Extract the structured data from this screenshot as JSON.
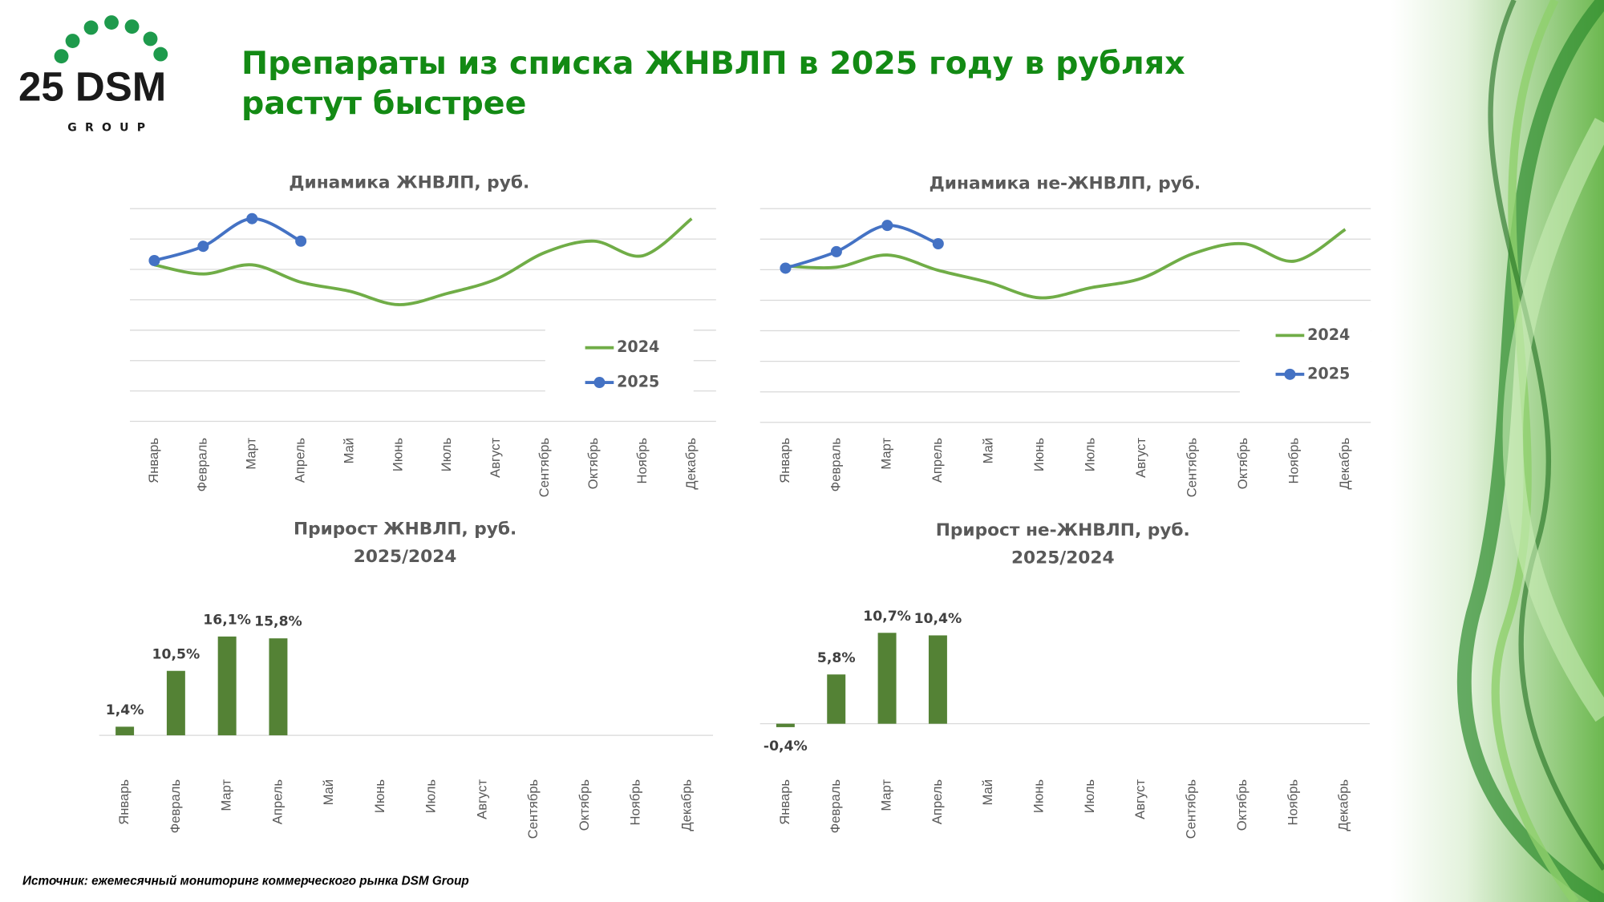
{
  "header": {
    "title_lines": [
      "Препараты из списка ЖНВЛП в 2025 году в рублях",
      "растут быстрее"
    ]
  },
  "logo": {
    "text": "25 DSM",
    "sub": "GROUP"
  },
  "source": "Источник: ежемесячный мониторинг коммерческого рынка DSM Group",
  "chart_data": [
    {
      "type": "line",
      "title": "Динамика ЖНВЛП, руб.",
      "categories": [
        "Январь",
        "Февраль",
        "Март",
        "Апрель",
        "Май",
        "Июнь",
        "Июль",
        "Август",
        "Сентябрь",
        "Октябрь",
        "Ноябрь",
        "Декабрь"
      ],
      "series": [
        {
          "name": "2024",
          "color": "#70ad47",
          "values": [
            5.15,
            4.85,
            5.15,
            4.58,
            4.28,
            3.84,
            4.21,
            4.68,
            5.56,
            5.93,
            5.45,
            6.67
          ]
        },
        {
          "name": "2025",
          "color": "#4472c4",
          "values": [
            5.29,
            5.76,
            6.67,
            5.93,
            null,
            null,
            null,
            null,
            null,
            null,
            null,
            null
          ]
        }
      ],
      "ylim": [
        0,
        7
      ],
      "yticks": [
        0,
        1,
        2,
        3,
        4,
        5,
        6,
        7
      ],
      "grid": true,
      "legend": "lower-right"
    },
    {
      "type": "line",
      "title": "Динамика не-ЖНВЛП, руб.",
      "categories": [
        "Январь",
        "Февраль",
        "Март",
        "Апрель",
        "Май",
        "Июнь",
        "Июль",
        "Август",
        "Сентябрь",
        "Октябрь",
        "Ноябрь",
        "Декабрь"
      ],
      "series": [
        {
          "name": "2024",
          "color": "#70ad47",
          "values": [
            5.12,
            5.08,
            5.48,
            4.98,
            4.58,
            4.08,
            4.41,
            4.72,
            5.52,
            5.85,
            5.28,
            6.32
          ]
        },
        {
          "name": "2025",
          "color": "#4472c4",
          "values": [
            5.05,
            5.59,
            6.45,
            5.85,
            null,
            null,
            null,
            null,
            null,
            null,
            null,
            null
          ]
        }
      ],
      "ylim": [
        0,
        7
      ],
      "yticks": [
        0,
        1,
        2,
        3,
        4,
        5,
        6,
        7
      ],
      "grid": true,
      "legend": "lower-right"
    },
    {
      "type": "bar",
      "title": "Прирост ЖНВЛП, руб.",
      "subtitle": "2025/2024",
      "categories": [
        "Январь",
        "Февраль",
        "Март",
        "Апрель",
        "Май",
        "Июнь",
        "Июль",
        "Август",
        "Сентябрь",
        "Октябрь",
        "Ноябрь",
        "Декабрь"
      ],
      "values": [
        1.4,
        10.5,
        16.1,
        15.8,
        null,
        null,
        null,
        null,
        null,
        null,
        null,
        null
      ],
      "value_labels": [
        "1,4%",
        "10,5%",
        "16,1%",
        "15,8%",
        null,
        null,
        null,
        null,
        null,
        null,
        null,
        null
      ],
      "color": "#548235",
      "ylim": [
        0,
        18
      ]
    },
    {
      "type": "bar",
      "title": "Прирост не-ЖНВЛП, руб.",
      "subtitle": "2025/2024",
      "categories": [
        "Январь",
        "Февраль",
        "Март",
        "Апрель",
        "Май",
        "Июнь",
        "Июль",
        "Август",
        "Сентябрь",
        "Октябрь",
        "Ноябрь",
        "Декабрь"
      ],
      "values": [
        -0.4,
        5.8,
        10.7,
        10.4,
        null,
        null,
        null,
        null,
        null,
        null,
        null,
        null
      ],
      "value_labels": [
        "-0,4%",
        "5,8%",
        "10,7%",
        "10,4%",
        null,
        null,
        null,
        null,
        null,
        null,
        null,
        null
      ],
      "color": "#548235",
      "ylim": [
        -1,
        12
      ]
    }
  ]
}
